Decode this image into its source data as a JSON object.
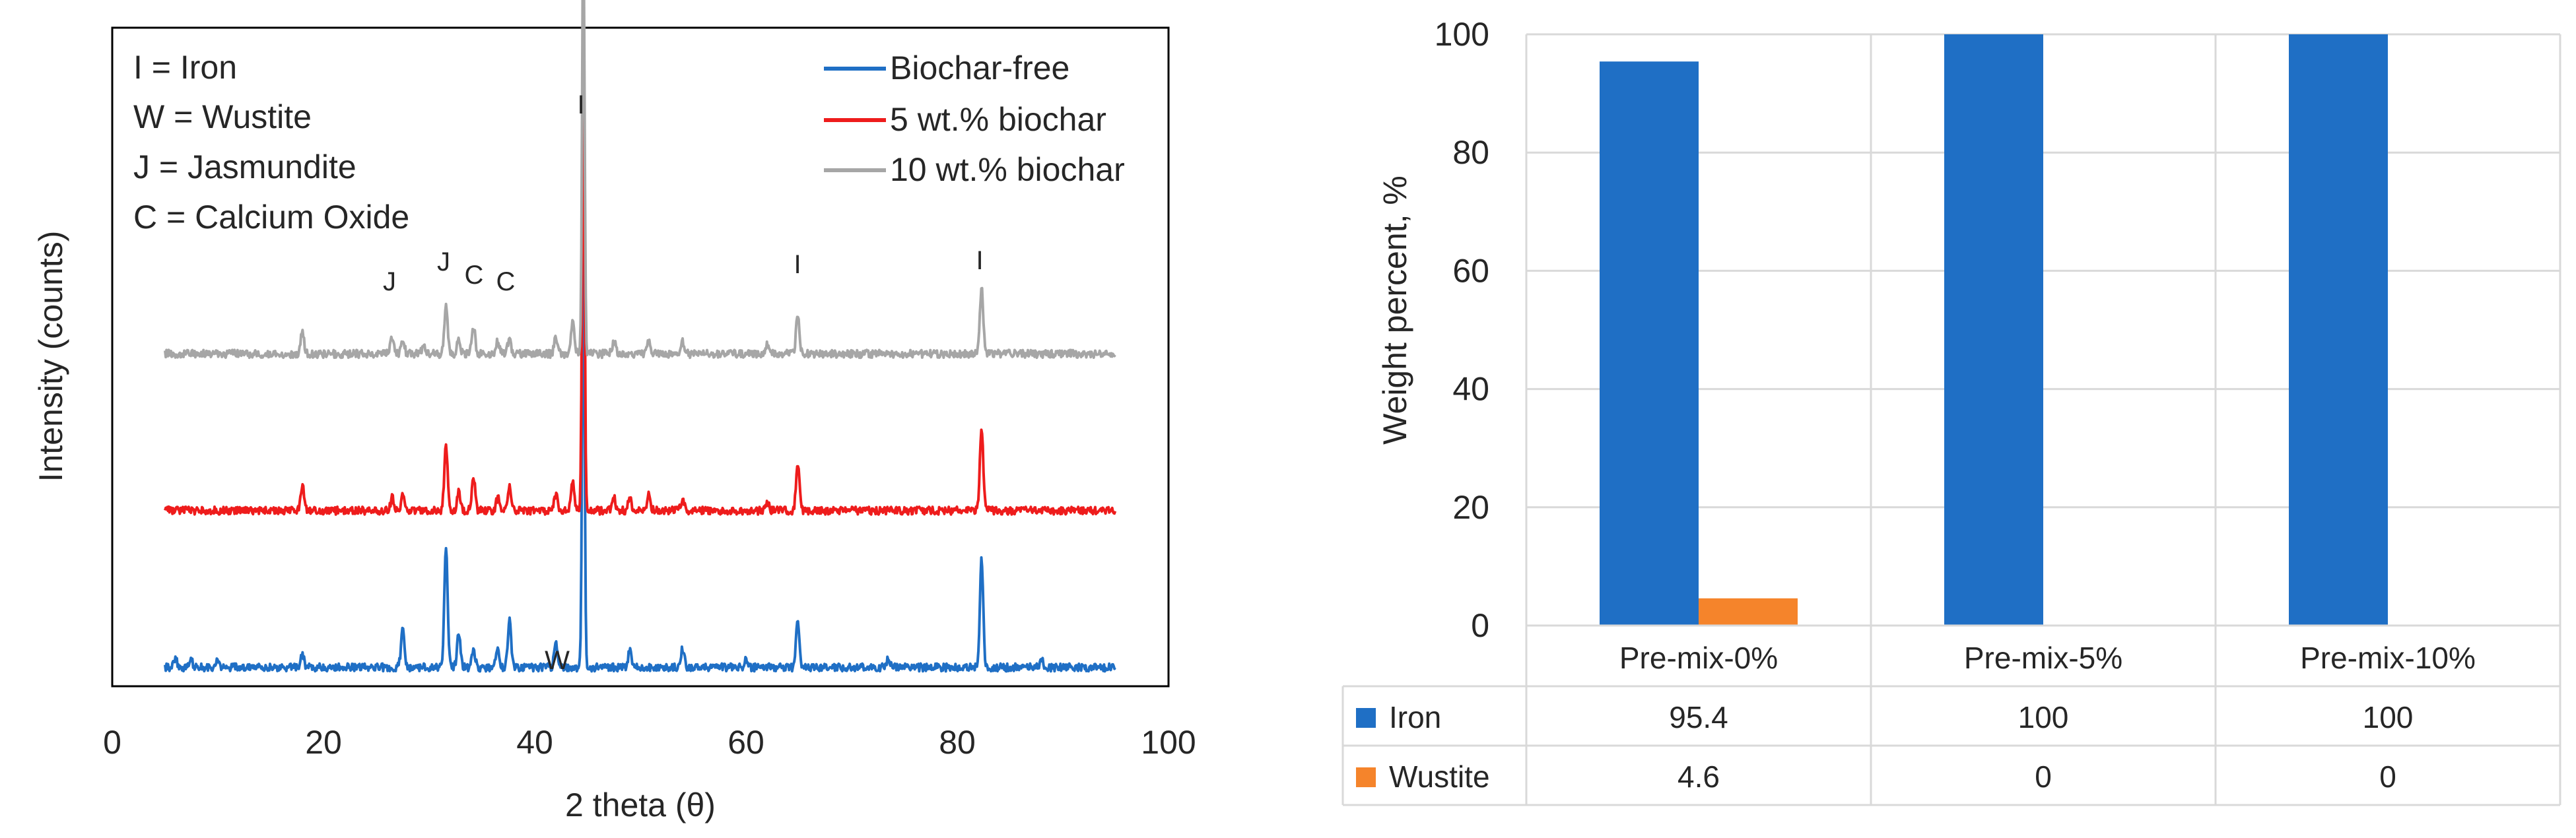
{
  "chart_data": [
    {
      "type": "line",
      "title": "",
      "xlabel": "2 theta (θ)",
      "ylabel": "Intensity (counts)",
      "xlim": [
        0,
        100
      ],
      "x_ticks": [
        "0",
        "20",
        "40",
        "60",
        "80",
        "100"
      ],
      "legend": {
        "position": "top-right",
        "entries": [
          "Biochar-free",
          "5 wt.% biochar",
          "10 wt.% biochar"
        ]
      },
      "key": [
        "I = Iron",
        "W = Wustite",
        "J = Jasmundite",
        "C = Calcium Oxide"
      ],
      "peak_annotations": [
        {
          "label": "I",
          "x": 44.6,
          "series": "10 wt.% biochar"
        },
        {
          "label": "J",
          "x": 26.5,
          "series": "10 wt.% biochar"
        },
        {
          "label": "J",
          "x": 31.6,
          "series": "10 wt.% biochar"
        },
        {
          "label": "C",
          "x": 34.2,
          "series": "10 wt.% biochar"
        },
        {
          "label": "C",
          "x": 37.5,
          "series": "10 wt.% biochar"
        },
        {
          "label": "I",
          "x": 64.9,
          "series": "10 wt.% biochar"
        },
        {
          "label": "I",
          "x": 82.3,
          "series": "10 wt.% biochar"
        },
        {
          "label": "W",
          "x": 42.0,
          "series": "Biochar-free"
        }
      ],
      "series": [
        {
          "name": "Biochar-free",
          "color": "#1f6fc5",
          "baseline": 0,
          "noise": 5,
          "x_range": [
            5,
            95
          ],
          "peaks": [
            [
              6,
              5
            ],
            [
              7.5,
              4
            ],
            [
              10,
              4
            ],
            [
              18,
              8
            ],
            [
              27.5,
              25
            ],
            [
              31.6,
              78
            ],
            [
              32.8,
              22
            ],
            [
              34.2,
              12
            ],
            [
              36.5,
              12
            ],
            [
              37.6,
              30
            ],
            [
              42,
              16
            ],
            [
              44.6,
              283
            ],
            [
              49,
              10
            ],
            [
              54,
              12
            ],
            [
              60,
              6
            ],
            [
              64.9,
              30
            ],
            [
              73.5,
              6
            ],
            [
              82.3,
              70
            ],
            [
              88,
              5
            ]
          ]
        },
        {
          "name": "5 wt.% biochar",
          "color": "#ee1c1c",
          "baseline": 100,
          "noise": 5,
          "x_range": [
            5,
            95
          ],
          "peaks": [
            [
              18,
              16
            ],
            [
              26.5,
              8
            ],
            [
              27.5,
              10
            ],
            [
              31.6,
              42
            ],
            [
              32.8,
              12
            ],
            [
              34.2,
              22
            ],
            [
              36.5,
              8
            ],
            [
              37.6,
              16
            ],
            [
              42,
              10
            ],
            [
              43.6,
              18
            ],
            [
              44.6,
              310
            ],
            [
              47.5,
              8
            ],
            [
              49,
              8
            ],
            [
              50.8,
              10
            ],
            [
              54,
              8
            ],
            [
              62,
              6
            ],
            [
              64.9,
              30
            ],
            [
              82.3,
              54
            ]
          ]
        },
        {
          "name": "10 wt.% biochar",
          "color": "#a6a6a6",
          "baseline": 200,
          "noise": 5,
          "x_range": [
            5,
            95
          ],
          "peaks": [
            [
              18,
              14
            ],
            [
              26.5,
              10
            ],
            [
              27.5,
              10
            ],
            [
              29.5,
              6
            ],
            [
              31.6,
              32
            ],
            [
              32.8,
              10
            ],
            [
              34.2,
              18
            ],
            [
              36.5,
              8
            ],
            [
              37.6,
              10
            ],
            [
              42,
              10
            ],
            [
              43.6,
              22
            ],
            [
              44.6,
              280
            ],
            [
              47.5,
              8
            ],
            [
              50.8,
              8
            ],
            [
              54,
              8
            ],
            [
              62,
              6
            ],
            [
              64.9,
              26
            ],
            [
              82.3,
              42
            ]
          ]
        }
      ]
    },
    {
      "type": "bar",
      "title": "",
      "xlabel": "",
      "ylabel": "Weight percent, %",
      "ylim": [
        0,
        100
      ],
      "y_ticks": [
        "0",
        "20",
        "40",
        "60",
        "80",
        "100"
      ],
      "categories": [
        "Pre-mix-0%",
        "Pre-mix-5%",
        "Pre-mix-10%"
      ],
      "series": [
        {
          "name": "Iron",
          "color": "#1f6fc5",
          "values": [
            95.4,
            100,
            100
          ],
          "labels": [
            "95.4",
            "100",
            "100"
          ]
        },
        {
          "name": "Wustite",
          "color": "#f5842b",
          "values": [
            4.6,
            0,
            0
          ],
          "labels": [
            "4.6",
            "0",
            "0"
          ]
        }
      ],
      "legend": {
        "position": "data-table"
      }
    }
  ]
}
